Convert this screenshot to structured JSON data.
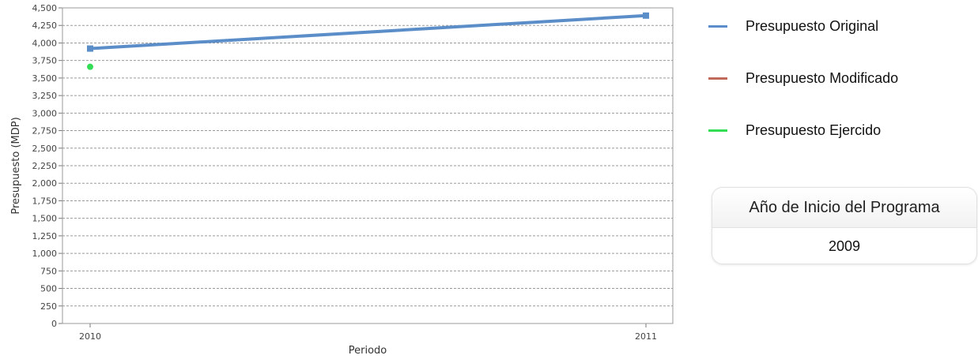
{
  "chart_data": {
    "type": "line",
    "categories": [
      "2010",
      "2011"
    ],
    "series": [
      {
        "name": "Presupuesto Original",
        "values": [
          3920,
          4390
        ],
        "color": "#5b8ec8",
        "marker": "square"
      },
      {
        "name": "Presupuesto Modificado",
        "values": [
          null,
          null
        ],
        "color": "#c0685a",
        "marker": "square"
      },
      {
        "name": "Presupuesto Ejercido",
        "values": [
          3660,
          null
        ],
        "color": "#33dd55",
        "marker": "circle"
      }
    ],
    "xlabel": "Periodo",
    "ylabel": "Presupuesto (MDP)",
    "ylim": [
      0,
      4500
    ],
    "yticks": [
      0,
      250,
      500,
      750,
      1000,
      1250,
      1500,
      1750,
      2000,
      2250,
      2500,
      2750,
      3000,
      3250,
      3500,
      3750,
      4000,
      4250,
      4500
    ],
    "grid": true,
    "legend_position": "right"
  },
  "legend": {
    "items": [
      {
        "label": "Presupuesto Original",
        "color": "#5b8ec8"
      },
      {
        "label": "Presupuesto Modificado",
        "color": "#c0685a"
      },
      {
        "label": "Presupuesto Ejercido",
        "color": "#33dd55"
      }
    ]
  },
  "info_card": {
    "title": "Año de Inicio del Programa",
    "value": "2009"
  }
}
